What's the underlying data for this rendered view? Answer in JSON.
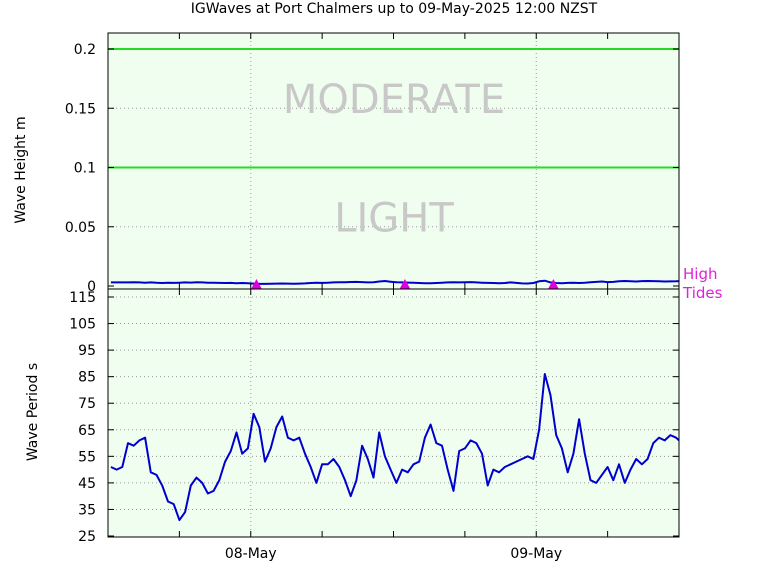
{
  "chart_data": [
    {
      "type": "line",
      "title": "IGWaves at Port Chalmers up to 09-May-2025 12:00 NZST",
      "ylabel": "Wave Height m",
      "ylim": [
        0,
        0.21
      ],
      "yticks": [
        "0",
        "0.05",
        "0.1",
        "0.15",
        "0.2"
      ],
      "ytick_values": [
        0,
        0.05,
        0.1,
        0.15,
        0.2
      ],
      "thresholds": [
        0.1,
        0.2
      ],
      "zones": [
        {
          "label": "MODERATE",
          "y": 0.158
        },
        {
          "label": "LIGHT",
          "y": 0.058
        }
      ],
      "high_tides_label": [
        "High",
        "Tides"
      ],
      "high_tides_x": [
        0.02,
        0.54,
        1.06
      ],
      "x": [
        -0.49,
        -0.47,
        -0.45,
        -0.43,
        -0.41,
        -0.39,
        -0.37,
        -0.35,
        -0.33,
        -0.31,
        -0.29,
        -0.27,
        -0.25,
        -0.23,
        -0.21,
        -0.19,
        -0.17,
        -0.15,
        -0.13,
        -0.11,
        -0.09,
        -0.07,
        -0.05,
        -0.03,
        -0.01,
        0.01,
        0.03,
        0.05,
        0.07,
        0.09,
        0.11,
        0.13,
        0.15,
        0.17,
        0.19,
        0.21,
        0.23,
        0.25,
        0.27,
        0.29,
        0.31,
        0.33,
        0.35,
        0.37,
        0.39,
        0.41,
        0.43,
        0.45,
        0.47,
        0.49,
        0.51,
        0.53,
        0.55,
        0.57,
        0.59,
        0.61,
        0.63,
        0.65,
        0.67,
        0.69,
        0.71,
        0.73,
        0.75,
        0.77,
        0.79,
        0.81,
        0.83,
        0.85,
        0.87,
        0.89,
        0.91,
        0.93,
        0.95,
        0.97,
        0.99,
        1.01,
        1.03,
        1.05,
        1.07,
        1.09,
        1.11,
        1.13,
        1.15,
        1.17,
        1.19,
        1.21,
        1.23,
        1.25,
        1.27,
        1.29,
        1.31,
        1.33,
        1.35,
        1.37,
        1.39,
        1.41,
        1.43,
        1.45,
        1.47,
        1.49,
        1.51
      ],
      "values": [
        0.003,
        0.003,
        0.003,
        0.003,
        0.0032,
        0.003,
        0.0028,
        0.003,
        0.0027,
        0.0025,
        0.0028,
        0.0026,
        0.0028,
        0.003,
        0.0029,
        0.0031,
        0.003,
        0.0028,
        0.0027,
        0.0026,
        0.0025,
        0.0026,
        0.0024,
        0.0025,
        0.0023,
        0.002,
        0.0018,
        0.0018,
        0.0019,
        0.002,
        0.0021,
        0.002,
        0.0019,
        0.002,
        0.0022,
        0.0025,
        0.0027,
        0.0026,
        0.0028,
        0.003,
        0.0031,
        0.0032,
        0.0034,
        0.0035,
        0.0033,
        0.003,
        0.0032,
        0.0038,
        0.0042,
        0.0036,
        0.0031,
        0.003,
        0.0029,
        0.0027,
        0.0025,
        0.0024,
        0.0023,
        0.0025,
        0.0028,
        0.003,
        0.0031,
        0.003,
        0.0032,
        0.0033,
        0.003,
        0.0028,
        0.0026,
        0.0025,
        0.0023,
        0.0025,
        0.003,
        0.0026,
        0.0022,
        0.0021,
        0.0025,
        0.004,
        0.0045,
        0.003,
        0.0025,
        0.0024,
        0.0026,
        0.0028,
        0.0025,
        0.0028,
        0.0032,
        0.0035,
        0.0038,
        0.0033,
        0.0035,
        0.004,
        0.0042,
        0.004,
        0.0038,
        0.0041,
        0.0042,
        0.0041,
        0.004,
        0.0038,
        0.0039,
        0.004,
        0.0041
      ]
    },
    {
      "type": "line",
      "ylabel": "Wave Period s",
      "ylim": [
        25,
        118
      ],
      "yticks": [
        "25",
        "35",
        "45",
        "55",
        "65",
        "75",
        "85",
        "95",
        "105",
        "115"
      ],
      "ytick_values": [
        25,
        35,
        45,
        55,
        65,
        75,
        85,
        95,
        105,
        115
      ],
      "xlim": [
        -0.5,
        1.5
      ],
      "xticks": [
        "08-May",
        "09-May"
      ],
      "xtick_values": [
        0,
        1
      ],
      "minor_xtick_values": [
        -0.25,
        0.25,
        0.5,
        0.75,
        1.25
      ],
      "x": [
        -0.49,
        -0.47,
        -0.45,
        -0.43,
        -0.41,
        -0.39,
        -0.37,
        -0.35,
        -0.33,
        -0.31,
        -0.29,
        -0.27,
        -0.25,
        -0.23,
        -0.21,
        -0.19,
        -0.17,
        -0.15,
        -0.13,
        -0.11,
        -0.09,
        -0.07,
        -0.05,
        -0.03,
        -0.01,
        0.01,
        0.03,
        0.05,
        0.07,
        0.09,
        0.11,
        0.13,
        0.15,
        0.17,
        0.19,
        0.21,
        0.23,
        0.25,
        0.27,
        0.29,
        0.31,
        0.33,
        0.35,
        0.37,
        0.39,
        0.41,
        0.43,
        0.45,
        0.47,
        0.49,
        0.51,
        0.53,
        0.55,
        0.57,
        0.59,
        0.61,
        0.63,
        0.65,
        0.67,
        0.69,
        0.71,
        0.73,
        0.75,
        0.77,
        0.79,
        0.81,
        0.83,
        0.85,
        0.87,
        0.89,
        0.91,
        0.93,
        0.95,
        0.97,
        0.99,
        1.01,
        1.03,
        1.05,
        1.07,
        1.09,
        1.11,
        1.13,
        1.15,
        1.17,
        1.19,
        1.21,
        1.23,
        1.25,
        1.27,
        1.29,
        1.31,
        1.33,
        1.35,
        1.37,
        1.39,
        1.41,
        1.43,
        1.45,
        1.47,
        1.49,
        1.51
      ],
      "values": [
        51,
        50,
        51,
        60,
        59,
        61,
        62,
        49,
        48,
        44,
        38,
        37,
        31,
        34,
        44,
        47,
        45,
        41,
        42,
        46,
        53,
        57,
        64,
        56,
        58,
        71,
        66,
        53,
        58,
        66,
        70,
        62,
        61,
        62,
        56,
        51,
        45,
        52,
        52,
        54,
        51,
        46,
        40,
        46,
        59,
        54,
        47,
        64,
        55,
        50,
        45,
        50,
        49,
        52,
        53,
        62,
        67,
        60,
        59,
        50,
        42,
        57,
        58,
        61,
        60,
        56,
        44,
        50,
        49,
        51,
        52,
        53,
        54,
        55,
        54,
        65,
        86,
        78,
        63,
        58,
        49,
        56,
        69,
        56,
        46,
        45,
        48,
        51,
        46,
        52,
        45,
        50,
        54,
        52,
        54,
        60,
        62,
        61,
        63,
        62,
        61
      ]
    }
  ]
}
